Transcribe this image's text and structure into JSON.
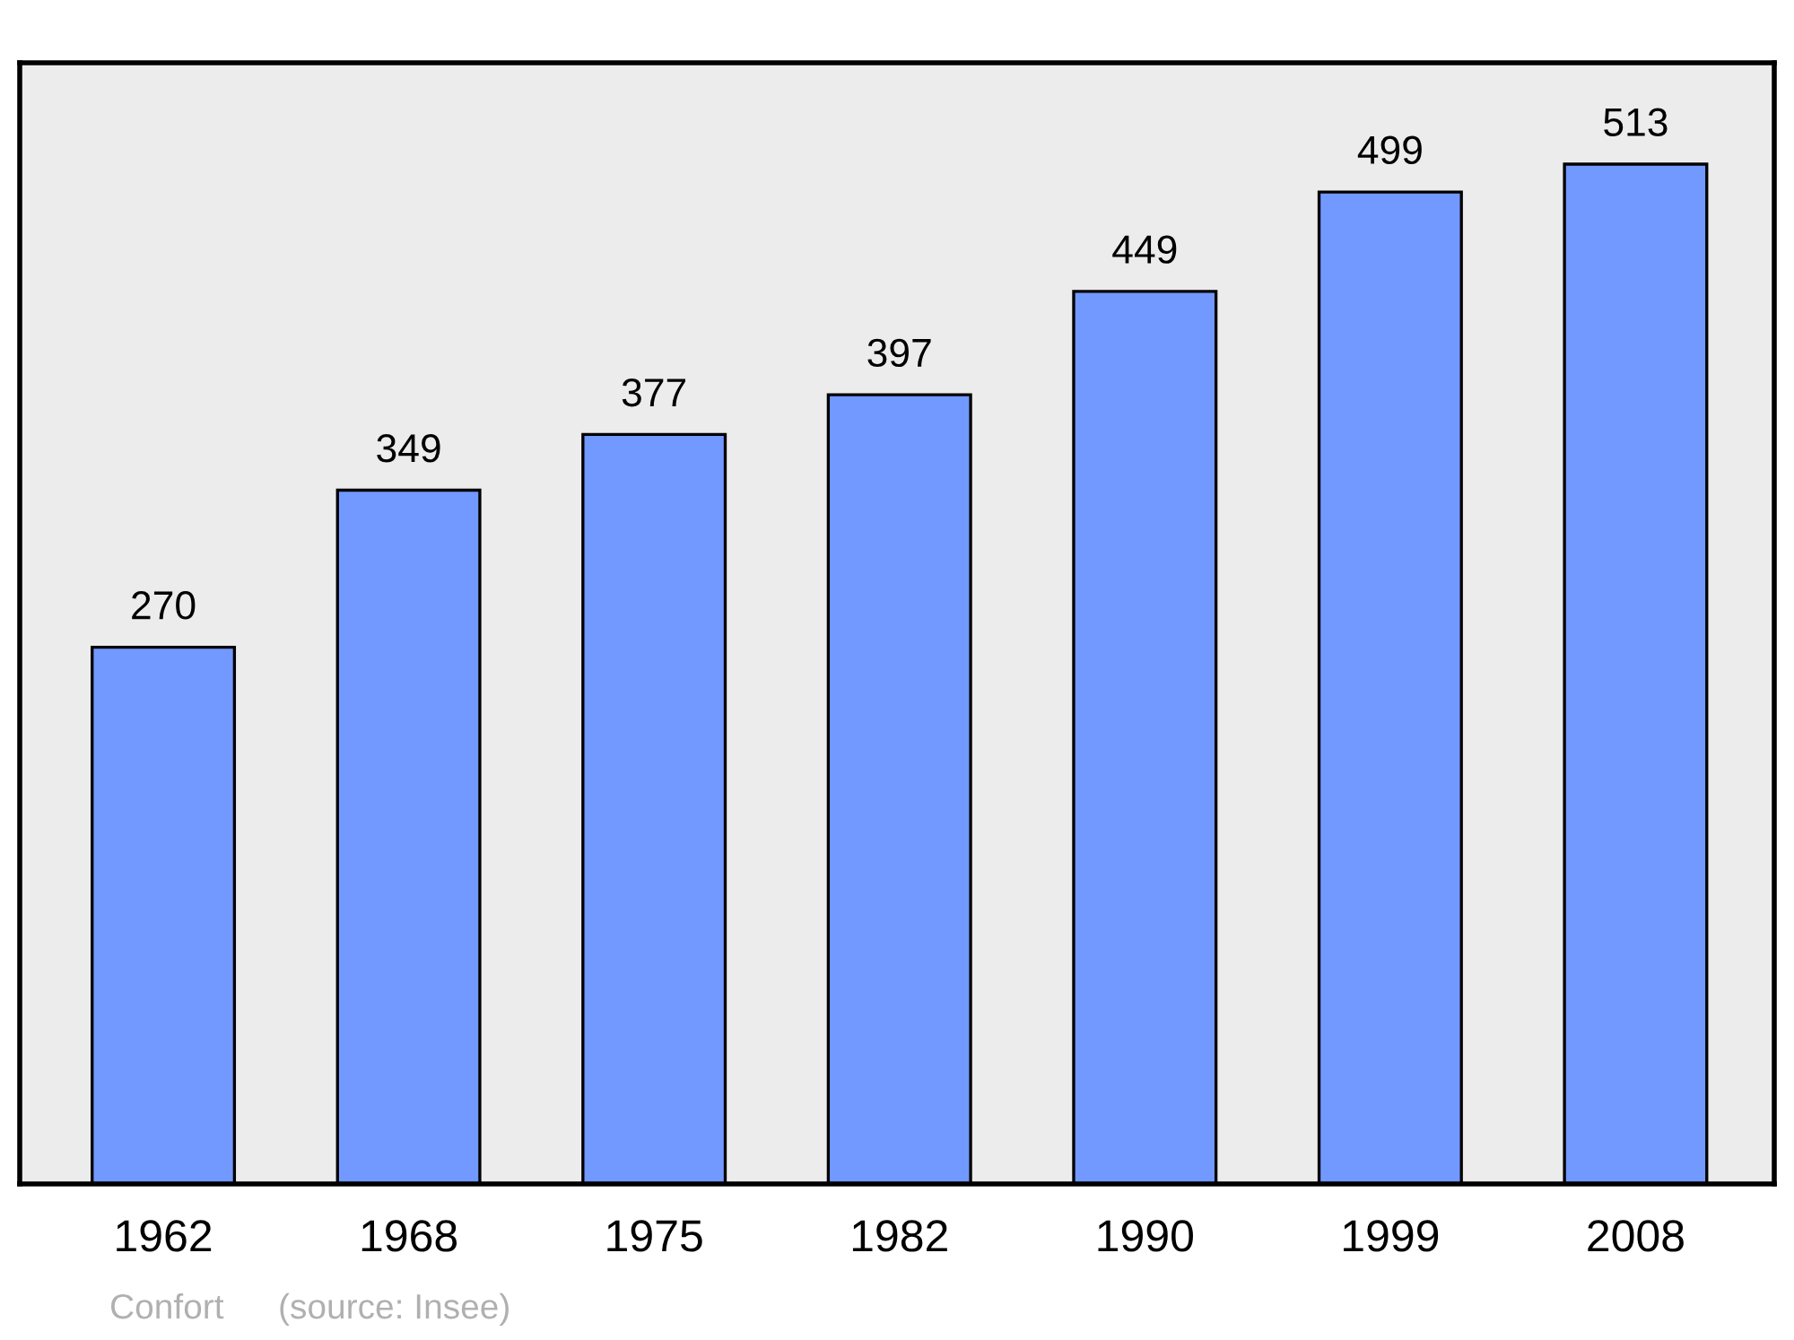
{
  "chart_data": {
    "type": "bar",
    "categories": [
      "1962",
      "1968",
      "1975",
      "1982",
      "1990",
      "1999",
      "2008"
    ],
    "values": [
      270,
      349,
      377,
      397,
      449,
      499,
      513
    ],
    "color": "#7299ff",
    "ylim": [
      0,
      564
    ],
    "data_labels": true,
    "grid": false,
    "tick_labels": "x",
    "annotations": [
      "Confort",
      "(source: Insee)"
    ]
  }
}
